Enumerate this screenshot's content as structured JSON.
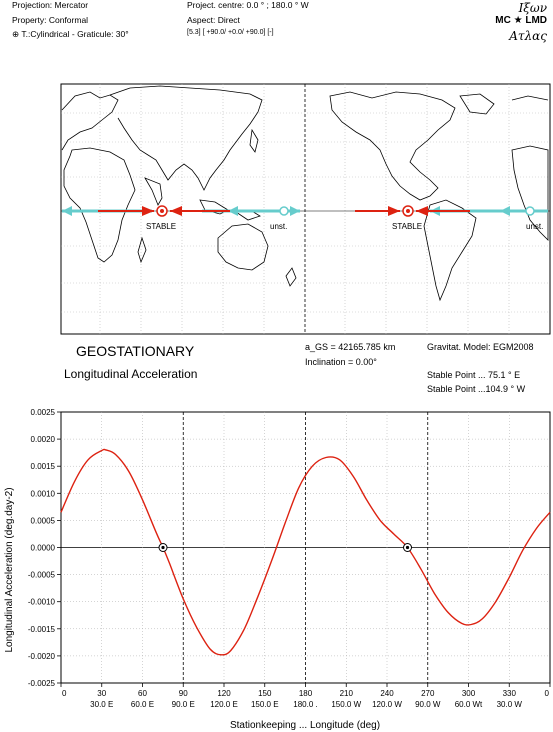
{
  "header": {
    "projection": "Projection:  Mercator",
    "property": "Property:  Conformal",
    "graticule_prefix": "⊕",
    "graticule": "T.:Cylindrical - Graticule: 30°",
    "centre": "Project. centre:  0.0 °  ;  180.0 ° W",
    "aspect": "Aspect:  Direct",
    "params": "[5.3] [ +90.0/  +0.0/ +90.0] [-]"
  },
  "brand": {
    "line1": "Ιξων",
    "line2": "MC ★ LMD",
    "line3": "Ατλας"
  },
  "map": {
    "labels": [
      "STABLE",
      "unst.",
      "STABLE",
      "unst."
    ],
    "colors": {
      "stable": "#dd2211",
      "unstable": "#66cccc",
      "coast": "#000000"
    }
  },
  "info": {
    "title": "GEOSTATIONARY",
    "subtitle": "Longitudinal Acceleration",
    "a_gs": "a_GS = 42165.785 km",
    "inclination": "Inclination  =   0.00°",
    "gravity": "Gravitat. Model: EGM2008",
    "stable1": "Stable Point ... 75.1 ° E",
    "stable2": "Stable Point ...104.9 ° W"
  },
  "chart_data": {
    "type": "line",
    "title": "",
    "xlabel": "Stationkeeping ... Longitude (deg)",
    "ylabel": "Longitudinal Acceleration (deg.day-2)",
    "xlim": [
      0,
      360
    ],
    "ylim": [
      -0.0025,
      0.0025
    ],
    "x_ticks_top": [
      "0",
      "30",
      "60",
      "90",
      "120",
      "150",
      "180",
      "210",
      "240",
      "270",
      "300",
      "330",
      "0"
    ],
    "x_ticks_bottom": [
      "",
      "30.0 E",
      "60.0 E",
      "90.0 E",
      "120.0 E",
      "150.0 E",
      "180.0 .",
      "150.0 W",
      "120.0 W",
      "90.0 W",
      "60.0 Wt",
      "30.0 W",
      ""
    ],
    "y_ticks": [
      "0.0025",
      "0.0020",
      "0.0015",
      "0.0010",
      "0.0005",
      "0.0000",
      "-0.0005",
      "-0.0010",
      "-0.0015",
      "-0.0020",
      "-0.0025"
    ],
    "series": [
      {
        "color": "#dd2211",
        "x": [
          0,
          10,
          20,
          30,
          33,
          40,
          50,
          60,
          70,
          75.1,
          80,
          90,
          100,
          110,
          118,
          125,
          135,
          145,
          155,
          165,
          175,
          185,
          195,
          205,
          215,
          225,
          235,
          245,
          255.1,
          265,
          275,
          285,
          295,
          302,
          310,
          320,
          330,
          340,
          350,
          360
        ],
        "y": [
          0.00065,
          0.00122,
          0.00162,
          0.00179,
          0.0018,
          0.00172,
          0.0014,
          0.00088,
          0.00028,
          0.0,
          -0.0003,
          -0.00095,
          -0.00148,
          -0.00188,
          -0.00198,
          -0.0019,
          -0.0015,
          -0.0009,
          -0.00025,
          0.00045,
          0.0011,
          0.0015,
          0.00166,
          0.00162,
          0.00132,
          0.00088,
          0.0005,
          0.00025,
          0.0,
          -0.0004,
          -0.00085,
          -0.0012,
          -0.0014,
          -0.00142,
          -0.00132,
          -0.001,
          -0.00055,
          -5e-05,
          0.00035,
          0.00065
        ]
      }
    ],
    "stable_points": [
      75.1,
      255.1
    ],
    "dashed_lines": [
      90,
      180,
      270
    ],
    "grid": true
  }
}
